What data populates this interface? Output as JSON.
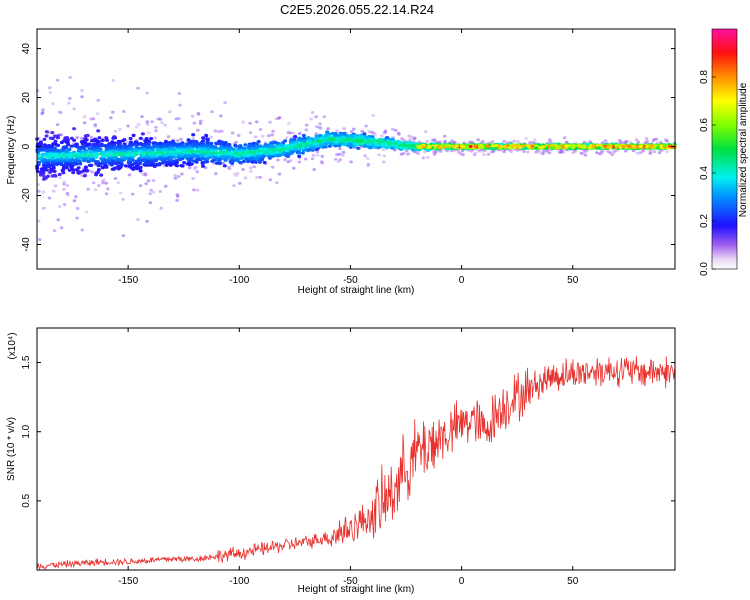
{
  "title": "C2E5.2026.055.22.14.R24",
  "colors": {
    "signal_line": "#e8302c",
    "axis": "#000000",
    "background": "#ffffff"
  },
  "chart_data": [
    {
      "type": "heatmap",
      "description_of_values": "spectrogram-like scatter: frequency vs. height, colored by normalized spectral amplitude",
      "xlabel": "Height of straight line (km)",
      "ylabel": "Frequency (Hz)",
      "xlim": [
        -191,
        96
      ],
      "ylim": [
        -50,
        48
      ],
      "xticks": [
        -150,
        -100,
        -50,
        0,
        50
      ],
      "yticks": [
        -40,
        -20,
        0,
        20,
        40
      ],
      "colorbar": {
        "label": "Normalized spectral amplitude",
        "range": [
          0.0,
          1.0
        ],
        "ticks": [
          "0.0",
          "0.2",
          "0.4",
          "0.6",
          "0.8"
        ],
        "tick_values": [
          0.0,
          0.2,
          0.4,
          0.6,
          0.8
        ],
        "colormap": "rainbow (white-purple-blue-cyan-green-yellow-red-magenta)"
      },
      "trend": {
        "x": [
          -191,
          -150,
          -120,
          -100,
          -80,
          -60,
          -40,
          -20,
          0,
          40,
          96
        ],
        "center_freq": [
          -4,
          -3,
          -2,
          -3,
          -1,
          3,
          2,
          0,
          0,
          0,
          0
        ],
        "spread": [
          22,
          18,
          14,
          10,
          8,
          7,
          6,
          3,
          2,
          2,
          2
        ]
      }
    },
    {
      "type": "line",
      "xlabel": "Height of straight line (km)",
      "ylabel": "SNR (10 * v/v)",
      "yscale_note": "(x10⁴)",
      "xlim": [
        -191,
        96
      ],
      "ylim": [
        0,
        1.75
      ],
      "xticks": [
        -150,
        -100,
        -50,
        0,
        50
      ],
      "yticks": [
        "0.5",
        "1.0",
        "1.5"
      ],
      "ytick_values": [
        0.5,
        1.0,
        1.5
      ],
      "series": [
        {
          "x": [
            -191,
            -180,
            -170,
            -160,
            -150,
            -140,
            -130,
            -120,
            -110,
            -100,
            -90,
            -80,
            -70,
            -60,
            -50,
            -45,
            -40,
            -35,
            -30,
            -25,
            -20,
            -15,
            -10,
            -5,
            0,
            5,
            10,
            15,
            20,
            25,
            30,
            35,
            40,
            50,
            60,
            70,
            80,
            90,
            96
          ],
          "y": [
            0.03,
            0.04,
            0.05,
            0.06,
            0.06,
            0.07,
            0.08,
            0.08,
            0.1,
            0.12,
            0.15,
            0.18,
            0.2,
            0.24,
            0.3,
            0.35,
            0.4,
            0.48,
            0.6,
            0.75,
            0.85,
            0.9,
            0.95,
            1.0,
            1.05,
            1.1,
            1.0,
            1.12,
            1.2,
            1.25,
            1.3,
            1.35,
            1.4,
            1.42,
            1.44,
            1.45,
            1.43,
            1.44,
            1.42
          ]
        }
      ]
    }
  ]
}
